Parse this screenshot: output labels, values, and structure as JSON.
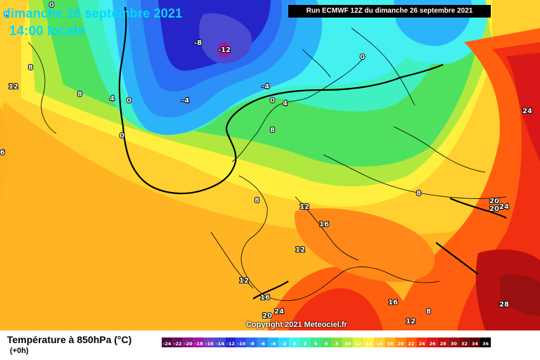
{
  "header": {
    "date_text": "dimanche 26 septembre 2021",
    "time_text": "14:00 locale",
    "run_text": "Run ECMWF 12Z du dimanche 26 septembre 2021"
  },
  "footer": {
    "legend_title": "Température à 850hPa (°C)",
    "legend_sub": "(+0h)",
    "copyright": "Copyright 2021 Meteociel.fr"
  },
  "scale": {
    "ticks": [
      "-24",
      "-22",
      "-20",
      "-18",
      "-16",
      "-14",
      "-12",
      "-10",
      "-8",
      "-6",
      "-4",
      "-2",
      "0",
      "2",
      "4",
      "6",
      "8",
      "10",
      "12",
      "14",
      "16",
      "18",
      "20",
      "22",
      "24",
      "26",
      "28",
      "30",
      "32",
      "34",
      "36"
    ],
    "colors": [
      "#4a0a3a",
      "#6a0c5e",
      "#8a1484",
      "#a018a8",
      "#7a3ec0",
      "#4a4ad0",
      "#2424c8",
      "#2a48e8",
      "#2a6cf2",
      "#2c90f6",
      "#2cb4fa",
      "#34d8fc",
      "#44f0f0",
      "#40f0c0",
      "#40e890",
      "#50e060",
      "#80e040",
      "#b0e840",
      "#e0f040",
      "#fff040",
      "#ffd030",
      "#ffb020",
      "#ff8818",
      "#ff6010",
      "#f03010",
      "#d81818",
      "#b81010",
      "#981010",
      "#780808",
      "#580404"
    ],
    "extra_color": "#000000"
  },
  "map_labels": [
    {
      "text": "-12"
    },
    {
      "text": "-8"
    },
    {
      "text": "-4"
    },
    {
      "text": "-4"
    },
    {
      "text": "0"
    },
    {
      "text": "0"
    },
    {
      "text": "0"
    },
    {
      "text": "0"
    },
    {
      "text": "4"
    },
    {
      "text": "4"
    },
    {
      "text": "8"
    },
    {
      "text": "8"
    },
    {
      "text": "8"
    },
    {
      "text": "8"
    },
    {
      "text": "8"
    },
    {
      "text": "8"
    },
    {
      "text": "12"
    },
    {
      "text": "12"
    },
    {
      "text": "12"
    },
    {
      "text": "12"
    },
    {
      "text": "12"
    },
    {
      "text": "16"
    },
    {
      "text": "16"
    },
    {
      "text": "16"
    },
    {
      "text": "20"
    },
    {
      "text": "20"
    },
    {
      "text": "20"
    },
    {
      "text": "24"
    },
    {
      "text": "24"
    },
    {
      "text": "24"
    },
    {
      "text": "28"
    },
    {
      "text": "6"
    },
    {
      "text": "8"
    },
    {
      "text": "0"
    }
  ]
}
